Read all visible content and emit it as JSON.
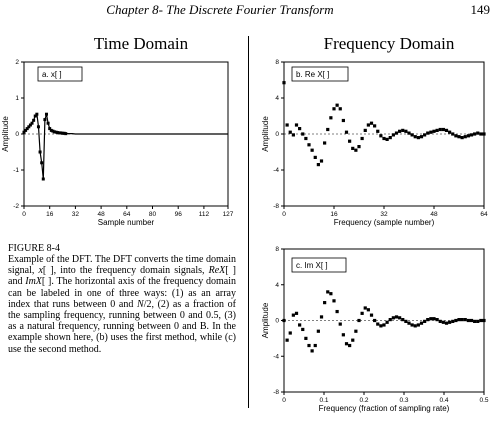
{
  "header": {
    "title": "Chapter 8- The Discrete Fourier Transform",
    "page_number": "149"
  },
  "headings": {
    "time": "Time Domain",
    "frequency": "Frequency Domain"
  },
  "figure": {
    "label": "FIGURE 8-4",
    "caption_parts": [
      "Example of the DFT. The DFT converts the time domain signal, ",
      "x",
      "[ ], into the frequency domain signals, ",
      "ReX",
      "[ ] and ",
      "ImX",
      "[ ]. The horizontal axis of the frequency domain can be labeled in one of three ways: (1) as an array index that runs between 0 and ",
      "N",
      "/2, (2) as a fraction of the sampling frequency, running between 0 and 0.5, (3) as a natural frequency, running between 0 and B. In the example shown here, (b) uses the first method, while (c) use the second method."
    ]
  },
  "chart_data": [
    {
      "id": "time",
      "type": "line",
      "legend": "a. x[ ]",
      "xlabel": "Sample number",
      "ylabel": "Amplitude",
      "xlim": [
        0,
        127
      ],
      "ylim": [
        -2,
        2
      ],
      "xticks": [
        0,
        16,
        32,
        48,
        64,
        80,
        96,
        112,
        127
      ],
      "yticks": [
        2,
        1,
        0,
        -1,
        -2
      ],
      "x": [
        0,
        1,
        2,
        3,
        4,
        5,
        6,
        7,
        8,
        9,
        10,
        11,
        12,
        13,
        14,
        15,
        16,
        17,
        18,
        19,
        20,
        21,
        22,
        23,
        24,
        25,
        26,
        28,
        30,
        32,
        36,
        40,
        48,
        56,
        64,
        80,
        96,
        112,
        127
      ],
      "y": [
        0.05,
        0.1,
        0.15,
        0.2,
        0.25,
        0.3,
        0.38,
        0.5,
        0.55,
        0.2,
        -0.5,
        -0.8,
        -1.25,
        0.4,
        0.55,
        0.3,
        0.15,
        0.1,
        0.08,
        0.06,
        0.05,
        0.04,
        0.03,
        0.03,
        0.02,
        0.02,
        0.01,
        0.01,
        0.01,
        0.0,
        0.0,
        0.0,
        0.0,
        0.0,
        0.0,
        0.0,
        0.0,
        0.0,
        0.0
      ]
    },
    {
      "id": "real",
      "type": "scatter",
      "legend": "b. Re X[ ]",
      "xlabel": "Frequency (sample number)",
      "ylabel": "Amplitude",
      "xlim": [
        0,
        64
      ],
      "ylim": [
        -8,
        8
      ],
      "xticks": [
        0,
        16,
        32,
        48,
        64
      ],
      "yticks": [
        8,
        4,
        0,
        -4,
        -8
      ],
      "x": [
        0,
        1,
        2,
        3,
        4,
        5,
        6,
        7,
        8,
        9,
        10,
        11,
        12,
        13,
        14,
        15,
        16,
        17,
        18,
        19,
        20,
        21,
        22,
        23,
        24,
        25,
        26,
        27,
        28,
        29,
        30,
        31,
        32,
        33,
        34,
        35,
        36,
        37,
        38,
        39,
        40,
        41,
        42,
        43,
        44,
        45,
        46,
        47,
        48,
        49,
        50,
        51,
        52,
        53,
        54,
        55,
        56,
        57,
        58,
        59,
        60,
        61,
        62,
        63,
        64
      ],
      "values": [
        5.7,
        1.0,
        0.2,
        -0.1,
        1.0,
        0.6,
        0.0,
        -0.5,
        -1.2,
        -1.8,
        -2.6,
        -3.4,
        -3.0,
        -1.0,
        0.5,
        1.8,
        2.8,
        3.2,
        2.8,
        1.5,
        0.2,
        -0.8,
        -1.6,
        -1.8,
        -1.4,
        -0.5,
        0.4,
        1.0,
        1.2,
        0.9,
        0.3,
        -0.2,
        -0.5,
        -0.6,
        -0.4,
        -0.1,
        0.1,
        0.3,
        0.4,
        0.3,
        0.1,
        -0.1,
        -0.3,
        -0.4,
        -0.3,
        -0.1,
        0.1,
        0.2,
        0.3,
        0.4,
        0.5,
        0.5,
        0.4,
        0.2,
        0.0,
        -0.2,
        -0.3,
        -0.4,
        -0.3,
        -0.2,
        -0.1,
        0.0,
        0.1,
        0.0,
        0.0
      ]
    },
    {
      "id": "imag",
      "type": "scatter",
      "legend": "c. Im X[ ]",
      "xlabel": "Frequency (fraction of sampling rate)",
      "ylabel": "Amplitude",
      "xlim": [
        0,
        0.5
      ],
      "ylim": [
        -8,
        8
      ],
      "xticks": [
        0,
        0.1,
        0.2,
        0.3,
        0.4,
        0.5
      ],
      "yticks": [
        8,
        4,
        0,
        -4,
        -8
      ],
      "x": [
        0,
        0.0078,
        0.0156,
        0.0234,
        0.0313,
        0.0391,
        0.0469,
        0.0547,
        0.0625,
        0.0703,
        0.0781,
        0.0859,
        0.0938,
        0.1016,
        0.1094,
        0.1172,
        0.125,
        0.1328,
        0.1406,
        0.1484,
        0.1563,
        0.1641,
        0.1719,
        0.1797,
        0.1875,
        0.1953,
        0.2031,
        0.2109,
        0.2188,
        0.2266,
        0.2344,
        0.2422,
        0.25,
        0.2578,
        0.2656,
        0.2734,
        0.2813,
        0.2891,
        0.2969,
        0.3047,
        0.3125,
        0.3203,
        0.3281,
        0.3359,
        0.3438,
        0.3516,
        0.3594,
        0.3672,
        0.375,
        0.3828,
        0.3906,
        0.3984,
        0.4063,
        0.4141,
        0.4219,
        0.4297,
        0.4375,
        0.4453,
        0.4531,
        0.4609,
        0.4688,
        0.4766,
        0.4844,
        0.4922,
        0.5
      ],
      "values": [
        0.0,
        -2.2,
        -1.4,
        0.6,
        0.8,
        -0.5,
        -1.0,
        -2.0,
        -2.8,
        -3.4,
        -2.8,
        -1.2,
        0.4,
        2.0,
        3.2,
        3.0,
        2.2,
        1.0,
        -0.4,
        -1.6,
        -2.6,
        -2.8,
        -2.2,
        -1.2,
        0.0,
        0.8,
        1.4,
        1.2,
        0.6,
        0.0,
        -0.4,
        -0.6,
        -0.5,
        -0.2,
        0.1,
        0.3,
        0.4,
        0.3,
        0.1,
        -0.1,
        -0.3,
        -0.5,
        -0.6,
        -0.5,
        -0.3,
        -0.1,
        0.1,
        0.2,
        0.2,
        0.1,
        -0.1,
        -0.2,
        -0.3,
        -0.2,
        -0.1,
        0.0,
        0.1,
        0.1,
        0.1,
        0.0,
        0.0,
        -0.1,
        -0.1,
        0.0,
        0.0
      ]
    }
  ]
}
